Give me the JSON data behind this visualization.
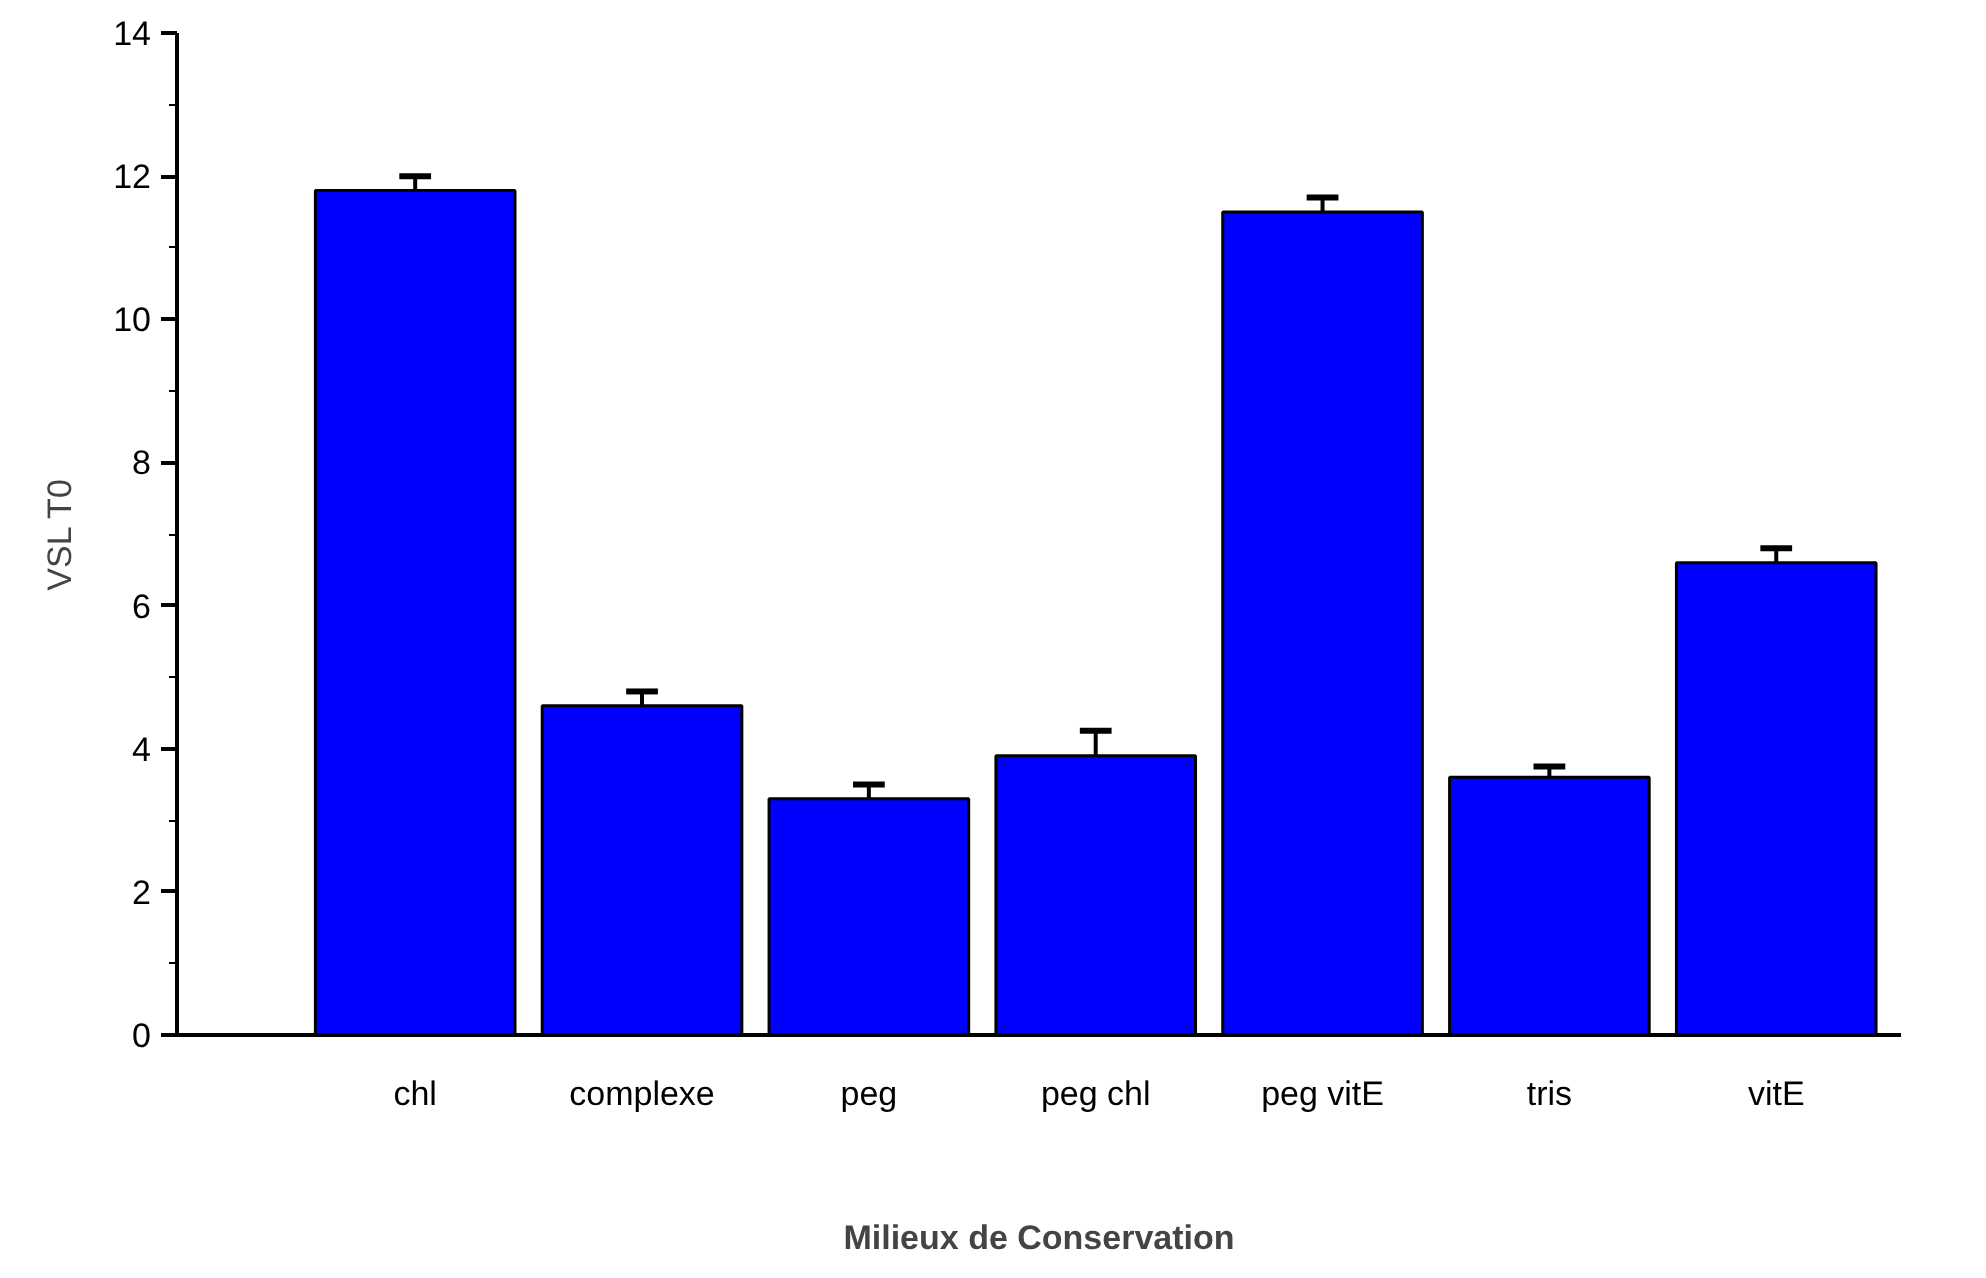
{
  "chart_data": {
    "type": "bar",
    "xlabel": "Milieux de Conservation",
    "ylabel": "VSL T0",
    "categories": [
      "chl",
      "complexe",
      "peg",
      "peg chl",
      "peg vitE",
      "tris",
      "vitE"
    ],
    "values": [
      11.8,
      4.6,
      3.3,
      3.9,
      11.5,
      3.6,
      6.6
    ],
    "errors": [
      [
        11.8,
        12.0
      ],
      [
        4.6,
        4.8
      ],
      [
        3.3,
        3.5
      ],
      [
        3.9,
        4.25
      ],
      [
        11.5,
        11.7
      ],
      [
        3.6,
        3.75
      ],
      [
        6.6,
        6.8
      ]
    ],
    "color": "#0000ff",
    "ylim": [
      0,
      14
    ],
    "yticks": [
      0,
      {
        "value": 1,
        "label": null
      },
      2,
      {
        "value": 3,
        "label": null
      },
      4,
      {
        "value": 5,
        "label": null
      },
      6,
      {
        "value": 7,
        "label": null
      },
      8,
      {
        "value": 9,
        "label": null
      },
      10,
      {
        "value": 11,
        "label": null
      },
      12,
      {
        "value": 13,
        "label": null
      },
      14
    ]
  }
}
